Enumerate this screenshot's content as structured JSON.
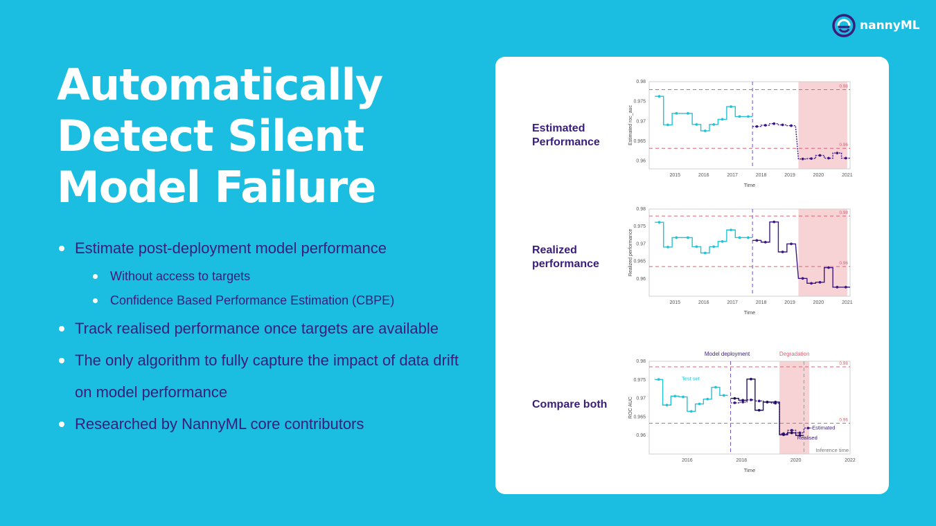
{
  "brand": {
    "name": "nannyML",
    "logo_icon": "nannyml-logo-icon"
  },
  "title_lines": [
    "Automatically",
    "Detect Silent",
    "Model Failure"
  ],
  "bullets": [
    "Estimate post-deployment model performance",
    "Without access to targets",
    "Confidence Based Performance Estimation (CBPE)",
    "Track realised performance once targets are available",
    "The only algorithm to fully capture the impact of data drift on model performance",
    "Researched by NannyML core contributors"
  ],
  "panel": {
    "row1_label": "Estimated Performance",
    "row2_label": "Realized performance",
    "row3_label": "Compare both"
  },
  "colors": {
    "background": "#1bbde0",
    "text_purple": "#3a1d7a",
    "reference": "#22c3d6",
    "analysis": "#3b1787",
    "threshold": "#e06070",
    "degradation_band": "#f7d3d6"
  },
  "chart_data": [
    {
      "type": "line",
      "title": "",
      "xlabel": "Time",
      "ylabel": "Estimated roc_auc",
      "ylim": [
        0.958,
        0.98
      ],
      "xlim": [
        2014.1,
        2021.1
      ],
      "yticks": [
        "0.98",
        "0.975",
        "0.97",
        "0.965",
        "0.96"
      ],
      "xticks": [
        "2015",
        "2016",
        "2017",
        "2018",
        "2019",
        "2020",
        "2021"
      ],
      "thresholds": {
        "upper": 0.978,
        "lower": 0.9632,
        "upper_label": "0.98",
        "lower_label": "0.96"
      },
      "deployment_x": 2017.7,
      "degradation_band": [
        2019.3,
        2021.0
      ],
      "series": [
        {
          "role": "reference",
          "x": [
            2014.3,
            2014.6,
            2014.9,
            2015.3,
            2015.6,
            2015.9,
            2016.2,
            2016.5,
            2016.8,
            2017.1,
            2017.4
          ],
          "values": [
            0.9763,
            0.9691,
            0.972,
            0.972,
            0.9692,
            0.9676,
            0.9692,
            0.9705,
            0.9737,
            0.9712,
            0.9712
          ]
        },
        {
          "role": "analysis",
          "x": [
            2017.7,
            2018.0,
            2018.3,
            2018.6,
            2018.9,
            2019.3,
            2019.6,
            2019.9,
            2020.2,
            2020.5,
            2020.8
          ],
          "values": [
            0.9687,
            0.969,
            0.9694,
            0.9691,
            0.9689,
            0.9605,
            0.9606,
            0.9614,
            0.9607,
            0.962,
            0.9607
          ]
        }
      ]
    },
    {
      "type": "line",
      "title": "",
      "xlabel": "Time",
      "ylabel": "Realized performance",
      "ylim": [
        0.955,
        0.98
      ],
      "xlim": [
        2014.1,
        2021.1
      ],
      "yticks": [
        "0.98",
        "0.975",
        "0.97",
        "0.965",
        "0.96"
      ],
      "xticks": [
        "2015",
        "2016",
        "2017",
        "2018",
        "2019",
        "2020",
        "2021"
      ],
      "thresholds": {
        "upper": 0.978,
        "lower": 0.9635,
        "upper_label": "0.98",
        "lower_label": "0.96"
      },
      "deployment_x": 2017.7,
      "degradation_band": [
        2019.3,
        2021.0
      ],
      "series": [
        {
          "role": "reference",
          "x": [
            2014.3,
            2014.6,
            2014.9,
            2015.3,
            2015.6,
            2015.9,
            2016.2,
            2016.5,
            2016.8,
            2017.1,
            2017.4
          ],
          "values": [
            0.9762,
            0.9691,
            0.9718,
            0.9718,
            0.9692,
            0.9674,
            0.9692,
            0.9707,
            0.974,
            0.9718,
            0.9718
          ]
        },
        {
          "role": "analysis",
          "x": [
            2017.7,
            2018.0,
            2018.3,
            2018.6,
            2018.9,
            2019.3,
            2019.6,
            2019.9,
            2020.2,
            2020.5,
            2020.8
          ],
          "values": [
            0.971,
            0.9705,
            0.9763,
            0.9677,
            0.97,
            0.9601,
            0.9587,
            0.959,
            0.9632,
            0.9576,
            0.9576
          ]
        }
      ]
    },
    {
      "type": "line",
      "title": "",
      "xlabel": "Time",
      "ylabel": "ROC AUC",
      "ylim": [
        0.955,
        0.98
      ],
      "xlim": [
        2014.6,
        2022.0
      ],
      "yticks": [
        "0.98",
        "0.975",
        "0.97",
        "0.965",
        "0.96"
      ],
      "xticks": [
        "2016",
        "2018",
        "2020",
        "2022"
      ],
      "thresholds": {
        "upper": 0.9785,
        "lower": 0.9633,
        "upper_label": "0.98",
        "lower_label": "0.96"
      },
      "deployment_x": 2017.6,
      "degradation_band": [
        2019.4,
        2020.5
      ],
      "inference_x": 2020.3,
      "annotations": {
        "deployment": "Model deployment",
        "degradation": "Degradation",
        "test_set": "Test set",
        "estimated": "Estimated",
        "realised": "Realised",
        "inference": "Inference time"
      },
      "series": [
        {
          "role": "reference",
          "x": [
            2014.8,
            2015.1,
            2015.4,
            2015.7,
            2016.0,
            2016.3,
            2016.6,
            2016.9,
            2017.2
          ],
          "values": [
            0.9751,
            0.9682,
            0.9706,
            0.9704,
            0.9665,
            0.9685,
            0.9698,
            0.973,
            0.9708
          ]
        },
        {
          "role": "estimated",
          "x": [
            2017.6,
            2017.9,
            2018.2,
            2018.5,
            2018.8,
            2019.1,
            2019.4,
            2019.7,
            2020.0,
            2020.3
          ],
          "values": [
            0.9688,
            0.969,
            0.9696,
            0.9693,
            0.969,
            0.9687,
            0.9605,
            0.9614,
            0.9607,
            0.962
          ]
        },
        {
          "role": "realised",
          "x": [
            2017.6,
            2017.9,
            2018.2,
            2018.5,
            2018.8,
            2019.1,
            2019.4,
            2019.7,
            2020.0
          ],
          "values": [
            0.97,
            0.9695,
            0.9752,
            0.9668,
            0.969,
            0.969,
            0.9602,
            0.9607,
            0.96
          ]
        }
      ]
    }
  ]
}
